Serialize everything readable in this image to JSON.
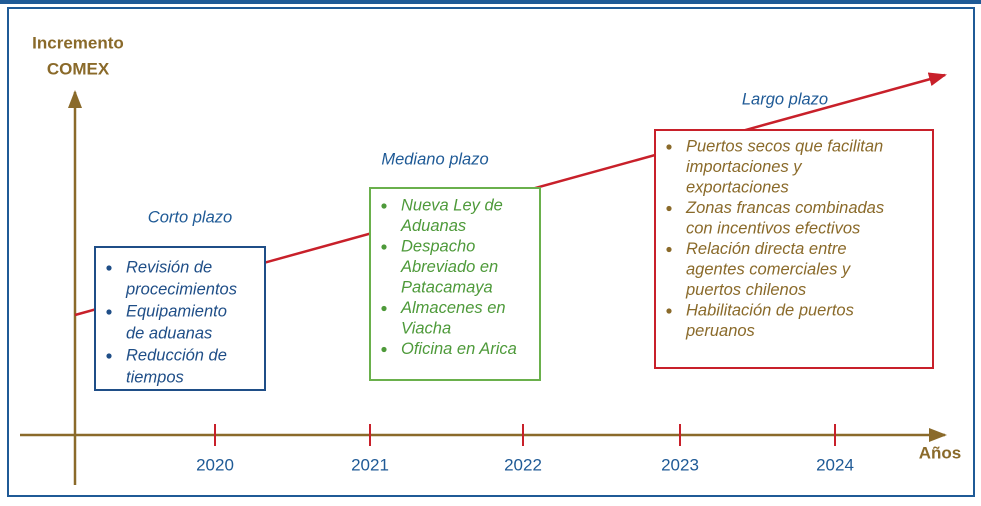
{
  "y_axis_label": [
    "Incremento",
    "COMEX"
  ],
  "x_axis_label": "Años",
  "years": [
    "2020",
    "2021",
    "2022",
    "2023",
    "2024"
  ],
  "phases": [
    {
      "title": "Corto plazo",
      "items": [
        [
          "Revisión de",
          "procecimientos"
        ],
        [
          "Equipamiento",
          "de aduanas"
        ],
        [
          "Reducción de",
          "tiempos"
        ]
      ]
    },
    {
      "title": "Mediano plazo",
      "items": [
        [
          "Nueva Ley de",
          "Aduanas"
        ],
        [
          "Despacho",
          "Abreviado en",
          "Patacamaya"
        ],
        [
          "Almacenes en",
          "Viacha"
        ],
        [
          "Oficina en Arica"
        ]
      ]
    },
    {
      "title": "Largo plazo",
      "items": [
        [
          "Puertos secos que facilitan",
          "importaciones y",
          "exportaciones"
        ],
        [
          "Zonas francas combinadas",
          "con incentivos efectivos"
        ],
        [
          "Relación directa entre",
          "agentes comerciales y",
          "puertos chilenos"
        ],
        [
          "Habilitación de puertos",
          "peruanos"
        ]
      ]
    }
  ]
}
